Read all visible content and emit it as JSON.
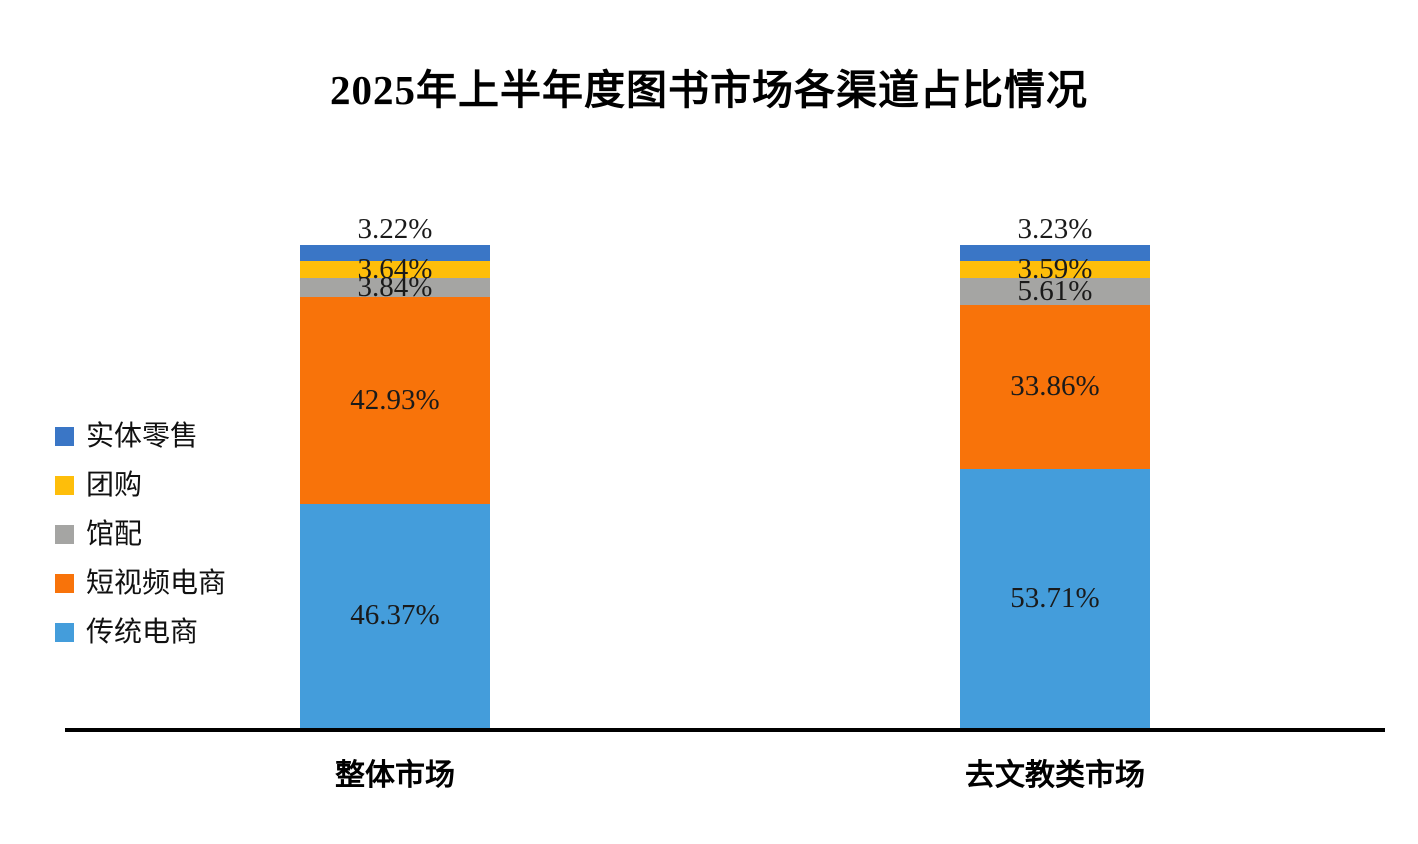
{
  "chart_data": {
    "type": "bar",
    "stacked": true,
    "orientation": "vertical",
    "title": "2025年上半年度图书市场各渠道占比情况",
    "categories": [
      "整体市场",
      "去文教类市场"
    ],
    "series": [
      {
        "name": "实体零售",
        "color": "#3A76C6",
        "values": [
          3.22,
          3.23
        ]
      },
      {
        "name": "团购",
        "color": "#FEBE0A",
        "values": [
          3.64,
          3.59
        ]
      },
      {
        "name": "馆配",
        "color": "#A5A5A3",
        "values": [
          3.84,
          5.61
        ]
      },
      {
        "name": "短视频电商",
        "color": "#F8730A",
        "values": [
          42.93,
          33.86
        ]
      },
      {
        "name": "传统电商",
        "color": "#449DDB",
        "values": [
          46.37,
          53.71
        ]
      }
    ],
    "series_order": "top-of-stack-first",
    "value_suffix": "%",
    "ylim": [
      0,
      100
    ],
    "legend_position": "left",
    "grid": false,
    "background": "#FFFFFF",
    "axis_line_color": "#000000",
    "data_label_examples": {
      "整体市场": [
        "3.22%",
        "3.64%",
        "3.84%",
        "42.93%",
        "46.37%"
      ],
      "去文教类市场": [
        "3.23%",
        "3.59%",
        "5.61%",
        "33.86%",
        "53.71%"
      ]
    }
  }
}
